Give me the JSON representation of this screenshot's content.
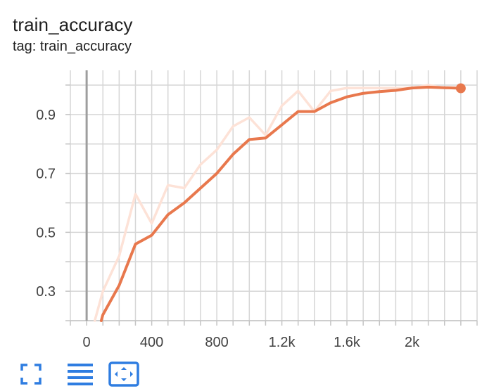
{
  "card": {
    "title": "train_accuracy",
    "subtitle": "tag: train_accuracy"
  },
  "toolbar": {
    "buttons": [
      {
        "name": "fullscreen-button",
        "icon": "fullscreen-icon"
      },
      {
        "name": "toggle-log-scale-button",
        "icon": "lines-icon"
      },
      {
        "name": "fit-domain-button",
        "icon": "fit-domain-icon"
      }
    ]
  },
  "chart_data": {
    "type": "line",
    "title": "train_accuracy",
    "xlabel": "",
    "ylabel": "",
    "xlim": [
      -100,
      2400
    ],
    "ylim": [
      0.2,
      1.05
    ],
    "x_ticks": [
      {
        "value": 0,
        "label": "0"
      },
      {
        "value": 400,
        "label": "400"
      },
      {
        "value": 800,
        "label": "800"
      },
      {
        "value": 1200,
        "label": "1.2k"
      },
      {
        "value": 1600,
        "label": "1.6k"
      },
      {
        "value": 2000,
        "label": "2k"
      }
    ],
    "y_ticks": [
      {
        "value": 0.3,
        "label": "0.3"
      },
      {
        "value": 0.5,
        "label": "0.5"
      },
      {
        "value": 0.7,
        "label": "0.7"
      },
      {
        "value": 0.9,
        "label": "0.9"
      }
    ],
    "grid": true,
    "series": [
      {
        "role": "raw",
        "color": "#fde2d7",
        "x": [
          50,
          100,
          200,
          300,
          400,
          500,
          600,
          700,
          800,
          900,
          1000,
          1100,
          1200,
          1300,
          1400,
          1500,
          1600,
          1700,
          1800,
          1900,
          2000,
          2100,
          2200,
          2300
        ],
        "y": [
          0.2,
          0.3,
          0.42,
          0.63,
          0.53,
          0.66,
          0.65,
          0.73,
          0.78,
          0.86,
          0.89,
          0.83,
          0.93,
          0.98,
          0.91,
          0.98,
          0.99,
          0.99,
          0.99,
          0.99,
          0.99,
          1.0,
          0.99,
          0.99
        ]
      },
      {
        "role": "smoothed",
        "color": "#e8784d",
        "x": [
          90,
          100,
          200,
          300,
          400,
          500,
          600,
          700,
          800,
          900,
          1000,
          1100,
          1200,
          1300,
          1400,
          1500,
          1600,
          1700,
          1800,
          1900,
          2000,
          2100,
          2200,
          2300
        ],
        "y": [
          0.2,
          0.22,
          0.32,
          0.46,
          0.49,
          0.56,
          0.6,
          0.65,
          0.7,
          0.765,
          0.815,
          0.82,
          0.865,
          0.91,
          0.91,
          0.94,
          0.96,
          0.972,
          0.978,
          0.982,
          0.99,
          0.993,
          0.991,
          0.989
        ]
      }
    ],
    "vertical_marker_x": 0
  }
}
